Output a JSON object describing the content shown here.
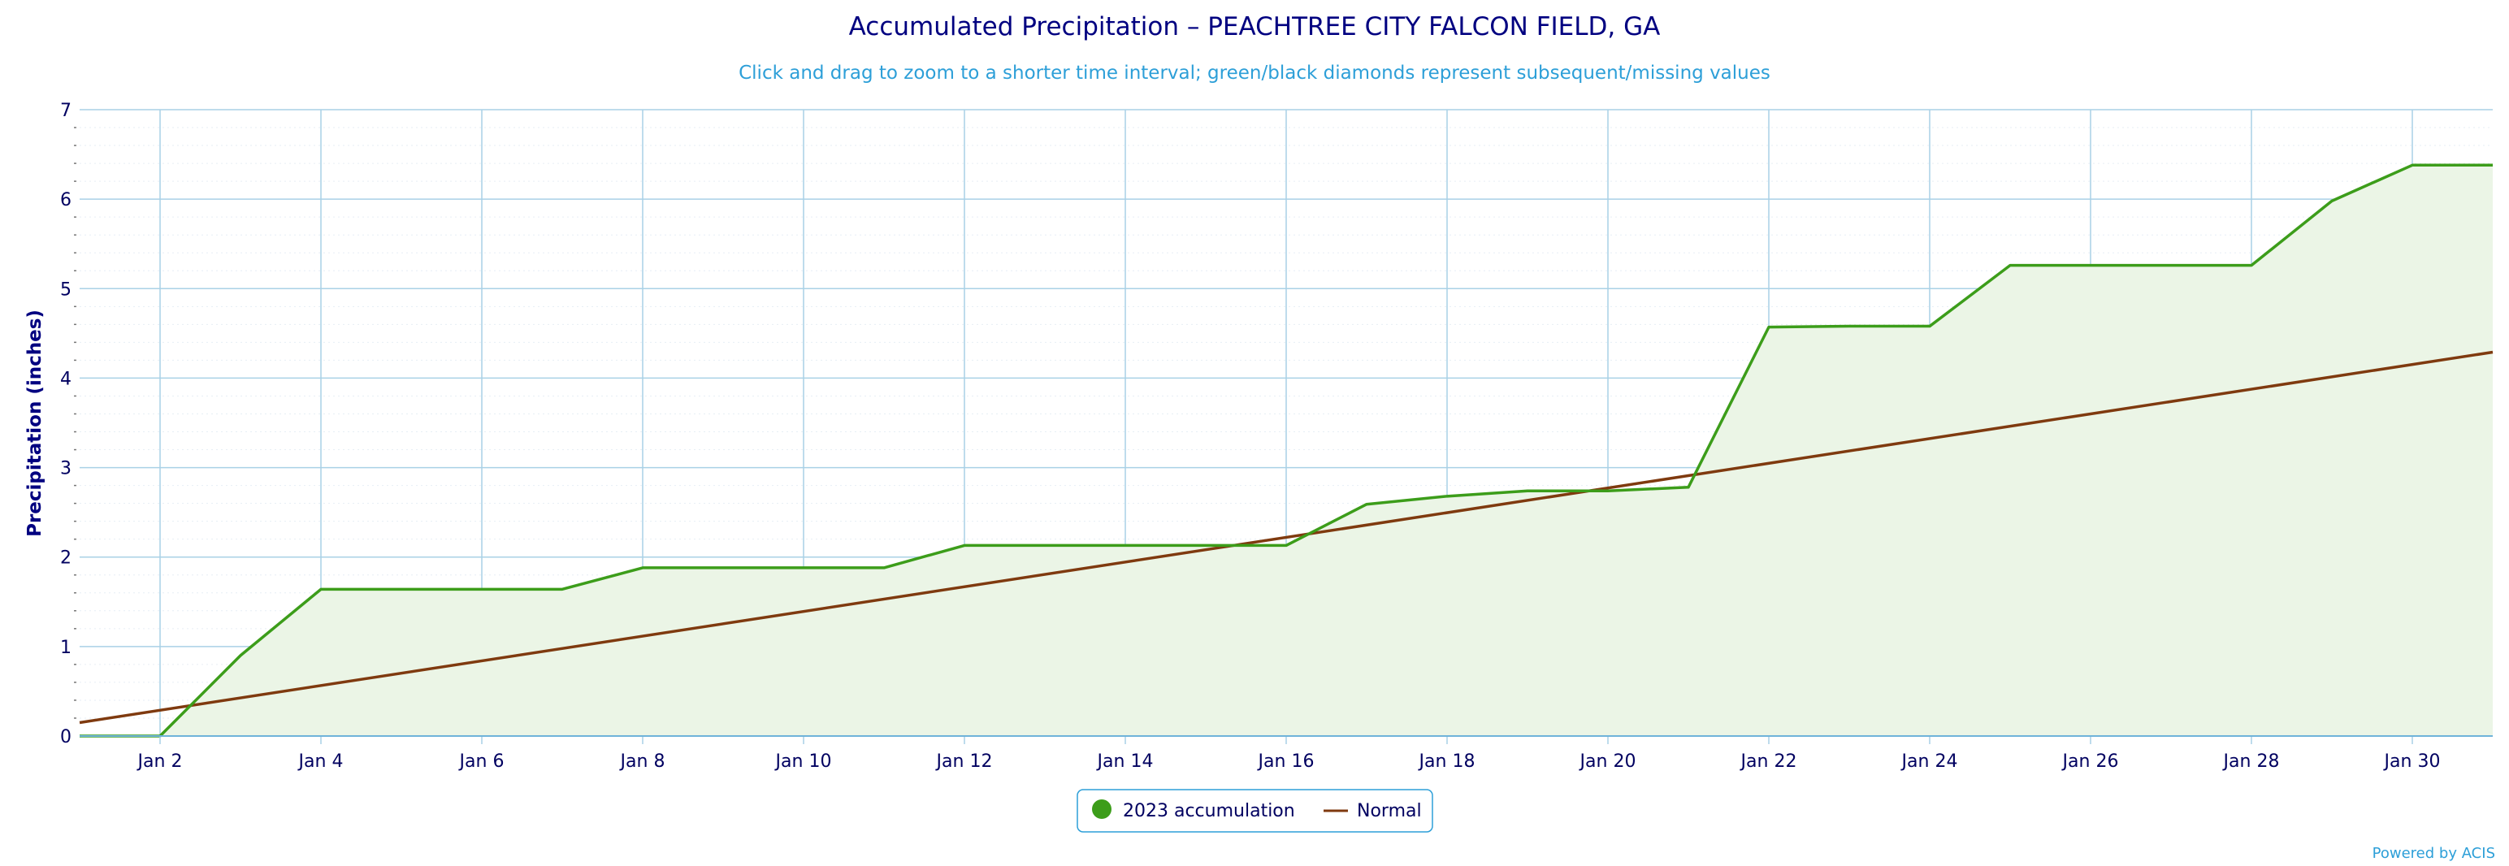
{
  "chart_data": {
    "type": "area",
    "title": "Accumulated Precipitation – PEACHTREE CITY FALCON FIELD, GA",
    "subtitle": "Click and drag to zoom to a shorter time interval; green/black diamonds represent subsequent/missing values",
    "ylabel": "Precipitation (inches)",
    "xlabel": "",
    "ylim": [
      0,
      7
    ],
    "yticks": [
      0,
      1,
      2,
      3,
      4,
      5,
      6,
      7
    ],
    "xlim": [
      1,
      31
    ],
    "xticks": [
      {
        "day": 2,
        "label": "Jan 2"
      },
      {
        "day": 4,
        "label": "Jan 4"
      },
      {
        "day": 6,
        "label": "Jan 6"
      },
      {
        "day": 8,
        "label": "Jan 8"
      },
      {
        "day": 10,
        "label": "Jan 10"
      },
      {
        "day": 12,
        "label": "Jan 12"
      },
      {
        "day": 14,
        "label": "Jan 14"
      },
      {
        "day": 16,
        "label": "Jan 16"
      },
      {
        "day": 18,
        "label": "Jan 18"
      },
      {
        "day": 20,
        "label": "Jan 20"
      },
      {
        "day": 22,
        "label": "Jan 22"
      },
      {
        "day": 24,
        "label": "Jan 24"
      },
      {
        "day": 26,
        "label": "Jan 26"
      },
      {
        "day": 28,
        "label": "Jan 28"
      },
      {
        "day": 30,
        "label": "Jan 30"
      }
    ],
    "grid": true,
    "legend_position": "bottom-center",
    "series": [
      {
        "name": "2023 accumulation",
        "color": "#3c9d1a",
        "fill": "#ebf5e6",
        "x": [
          1,
          2,
          3,
          4,
          5,
          6,
          7,
          8,
          9,
          10,
          11,
          12,
          13,
          14,
          15,
          16,
          17,
          18,
          19,
          20,
          21,
          22,
          23,
          24,
          25,
          26,
          27,
          28,
          29,
          30,
          31
        ],
        "values": [
          0.0,
          0.0,
          0.9,
          1.64,
          1.64,
          1.64,
          1.64,
          1.88,
          1.88,
          1.88,
          1.88,
          2.13,
          2.13,
          2.13,
          2.13,
          2.13,
          2.59,
          2.68,
          2.74,
          2.74,
          2.78,
          4.57,
          4.58,
          4.58,
          5.26,
          5.26,
          5.26,
          5.26,
          5.98,
          6.38,
          6.38
        ]
      },
      {
        "name": "Normal",
        "color": "#7f3a0f",
        "x": [
          1,
          31
        ],
        "values": [
          0.15,
          4.29
        ]
      }
    ]
  },
  "legend": {
    "items": [
      {
        "label": "2023 accumulation",
        "color": "#3c9d1a",
        "marker": "circle"
      },
      {
        "label": "Normal",
        "color": "#7f3a0f",
        "marker": "line"
      }
    ]
  },
  "credit": "Powered by ACIS"
}
